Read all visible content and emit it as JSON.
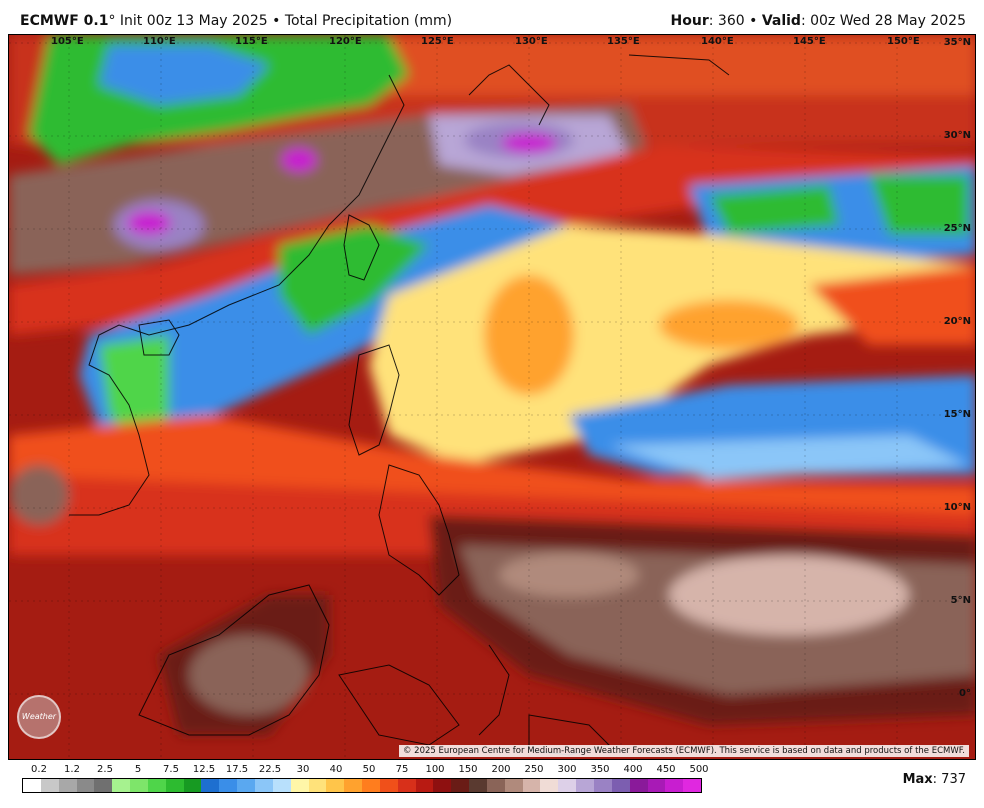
{
  "header": {
    "model": "ECMWF 0.1",
    "degree": "°",
    "init": "Init 00z 13 May 2025",
    "bullet": "•",
    "product": "Total Precipitation (mm)",
    "hour_label": "Hour",
    "hour_value": ": 360",
    "valid_label": "Valid",
    "valid_value": ": 00z Wed 28 May 2025"
  },
  "map": {
    "lon_labels": [
      "105°E",
      "110°E",
      "115°E",
      "120°E",
      "125°E",
      "130°E",
      "135°E",
      "140°E",
      "145°E",
      "150°E"
    ],
    "lat_labels": [
      "35°N",
      "30°N",
      "25°N",
      "20°N",
      "15°N",
      "10°N",
      "5°N",
      "0°"
    ],
    "copyright": "© 2025 European Centre for Medium-Range Weather Forecasts (ECMWF). This service is based on data and products of the ECMWF.",
    "logo_text": "Weather"
  },
  "legend": {
    "ticks": [
      "0.2",
      "1.2",
      "2.5",
      "5",
      "7.5",
      "12.5",
      "17.5",
      "22.5",
      "30",
      "40",
      "50",
      "75",
      "100",
      "150",
      "200",
      "250",
      "300",
      "350",
      "400",
      "450",
      "500"
    ],
    "colors": [
      "#ffffff",
      "#c8c8c8",
      "#a8a8a8",
      "#8a8a8a",
      "#707070",
      "#a6f28f",
      "#7ee56a",
      "#4fd54a",
      "#2dbb30",
      "#179a22",
      "#1e6fd0",
      "#3a8ee8",
      "#5aa8f0",
      "#8bc6f8",
      "#b8e0fc",
      "#fff6a8",
      "#ffe27a",
      "#ffc54a",
      "#ffa22e",
      "#ff7d1e",
      "#f0501a",
      "#d8301a",
      "#b81a12",
      "#8e1010",
      "#6a1c16",
      "#5a3a30",
      "#8a6458",
      "#b08a7c",
      "#d6b4aa",
      "#f0dcd6",
      "#ddd0e8",
      "#b8a6d6",
      "#9a82c4",
      "#7c5eb0",
      "#8a1a9a",
      "#a81ab6",
      "#c81ed0",
      "#e028e0"
    ]
  },
  "max": {
    "label": "Max",
    "value": ": 737"
  }
}
